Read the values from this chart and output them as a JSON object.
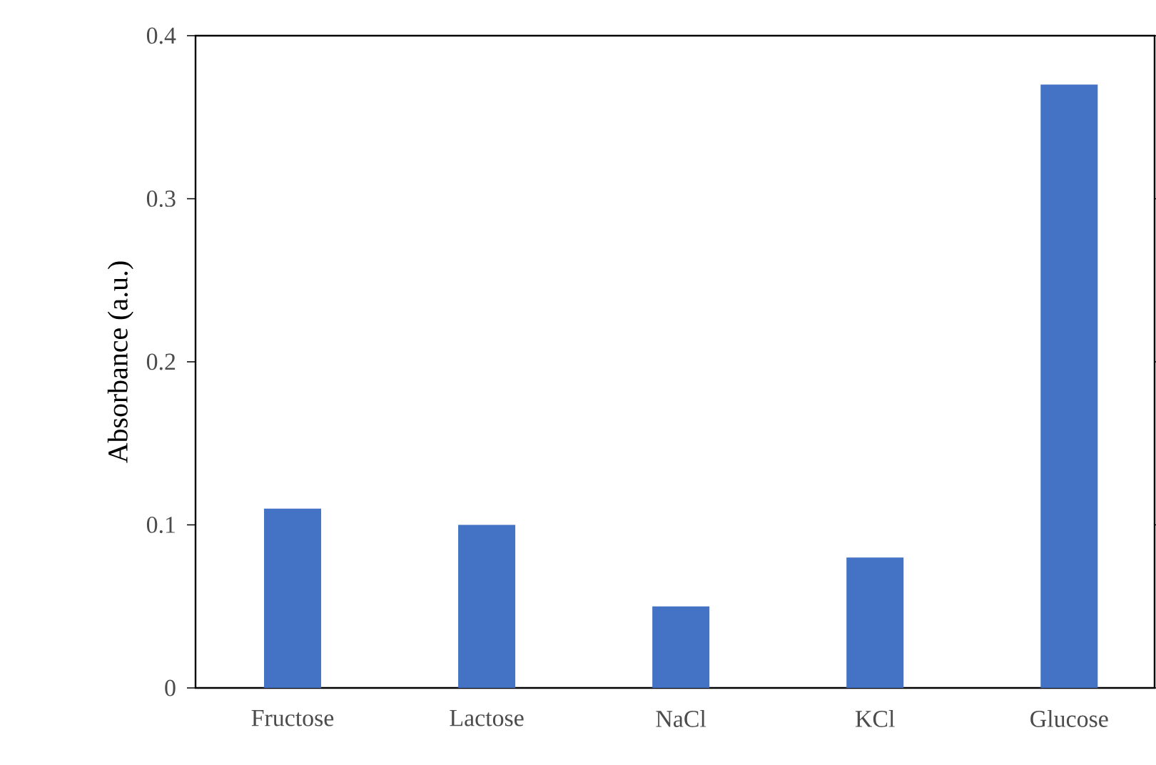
{
  "chart_data": {
    "type": "bar",
    "ylabel": "Absorbance (a.u.)",
    "categories": [
      "Fructose",
      "Lactose",
      "NaCl",
      "KCl",
      "Glucose"
    ],
    "values": [
      0.11,
      0.1,
      0.05,
      0.08,
      0.37
    ],
    "color": "#4472c4",
    "ylim": [
      0,
      0.4
    ],
    "yticks": [
      0,
      0.1,
      0.2,
      0.3,
      0.4
    ]
  }
}
